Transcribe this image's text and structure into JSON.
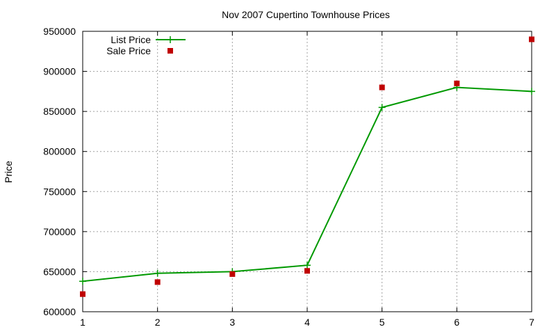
{
  "chart_data": {
    "type": "line",
    "title": "Nov 2007 Cupertino Townhouse Prices",
    "ylabel": "Price",
    "xlabel": "",
    "xlim": [
      1,
      7
    ],
    "ylim": [
      600000,
      950000
    ],
    "x_ticks": [
      1,
      2,
      3,
      4,
      5,
      6,
      7
    ],
    "y_ticks": [
      600000,
      650000,
      700000,
      750000,
      800000,
      850000,
      900000,
      950000
    ],
    "grid": true,
    "legend_position": "top-left",
    "series": [
      {
        "name": "List Price",
        "style": "lines+crosses",
        "color": "#009900",
        "x": [
          1,
          2,
          3,
          4,
          5,
          6,
          7
        ],
        "values": [
          638000,
          648000,
          650000,
          658000,
          855000,
          880000,
          875000
        ]
      },
      {
        "name": "Sale Price",
        "style": "squares",
        "color": "#c00000",
        "x": [
          1,
          2,
          3,
          4,
          5,
          6,
          7
        ],
        "values": [
          622000,
          637000,
          647000,
          651000,
          880000,
          885000,
          940000
        ]
      }
    ]
  }
}
